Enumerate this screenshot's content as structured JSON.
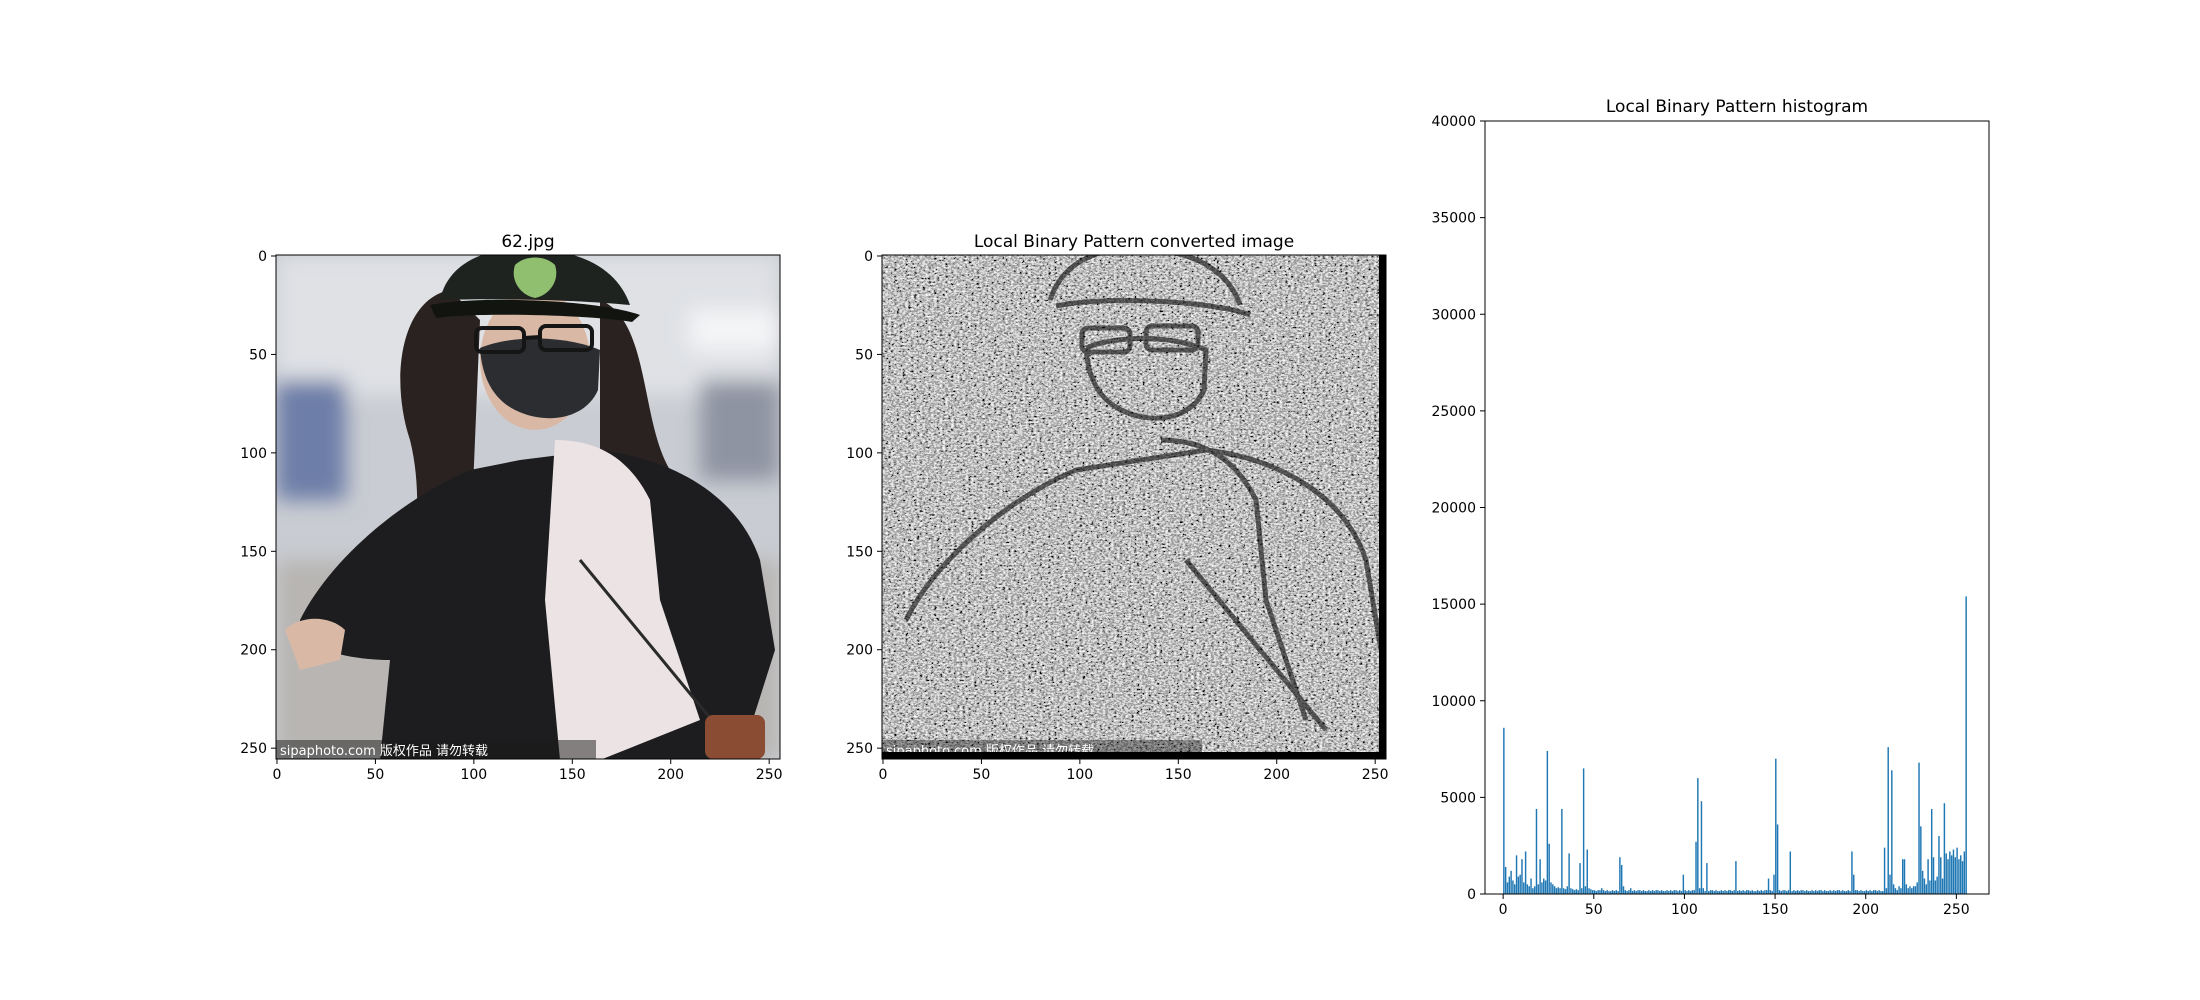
{
  "panels": [
    {
      "title": "62.jpg",
      "xticks": [
        "0",
        "50",
        "100",
        "150",
        "200",
        "250"
      ],
      "yticks": [
        "0",
        "50",
        "100",
        "150",
        "200",
        "250"
      ],
      "watermark": "sipaphoto.com 版权作品 请勿转载",
      "colors": {
        "skin": "#d9b9a6",
        "hair": "#2a2220",
        "mask": "#2b2d31",
        "jacket": "#1d1d1f",
        "top": "#ece4e4",
        "cap": "#1f2320",
        "cap_logo": "#8fbf6f",
        "background": "#c9ccd2",
        "bag": "#8a4d33"
      }
    },
    {
      "title": "Local Binary Pattern converted image",
      "xticks": [
        "0",
        "50",
        "100",
        "150",
        "200",
        "250"
      ],
      "yticks": [
        "0",
        "50",
        "100",
        "150",
        "200",
        "250"
      ],
      "watermark": "sipaphoto.com 版权作品 请勿转载"
    }
  ],
  "chart_data": {
    "type": "bar",
    "title": "Local Binary Pattern histogram",
    "xlabel": "",
    "ylabel": "",
    "xlim": [
      -10,
      268
    ],
    "ylim": [
      0,
      40000
    ],
    "xticks": [
      0,
      50,
      100,
      150,
      200,
      250
    ],
    "yticks": [
      0,
      5000,
      10000,
      15000,
      20000,
      25000,
      30000,
      35000,
      40000
    ],
    "grid": false,
    "bar_color": "#1f77b4",
    "values": [
      8600,
      1400,
      600,
      900,
      1200,
      700,
      500,
      2000,
      900,
      1000,
      1800,
      600,
      2200,
      500,
      400,
      800,
      300,
      400,
      4400,
      500,
      1800,
      600,
      800,
      700,
      7400,
      2600,
      600,
      500,
      400,
      300,
      350,
      300,
      4400,
      300,
      250,
      400,
      2100,
      300,
      250,
      200,
      250,
      200,
      1600,
      300,
      6500,
      400,
      2300,
      300,
      250,
      200,
      200,
      150,
      200,
      200,
      300,
      200,
      150,
      200,
      150,
      150,
      200,
      150,
      200,
      150,
      1900,
      1500,
      400,
      200,
      150,
      200,
      300,
      150,
      200,
      150,
      200,
      200,
      150,
      200,
      150,
      150,
      200,
      150,
      200,
      150,
      200,
      200,
      150,
      200,
      150,
      150,
      200,
      150,
      200,
      150,
      200,
      200,
      150,
      200,
      150,
      1000,
      200,
      150,
      200,
      150,
      200,
      200,
      2700,
      6000,
      300,
      4800,
      300,
      150,
      1600,
      150,
      200,
      200,
      150,
      200,
      150,
      150,
      200,
      150,
      200,
      150,
      200,
      200,
      150,
      200,
      1700,
      150,
      200,
      150,
      200,
      150,
      200,
      200,
      150,
      200,
      150,
      150,
      200,
      150,
      200,
      150,
      200,
      200,
      800,
      200,
      150,
      1000,
      7000,
      3600,
      200,
      150,
      200,
      200,
      150,
      200,
      2200,
      150,
      200,
      150,
      200,
      150,
      200,
      200,
      150,
      200,
      150,
      150,
      200,
      150,
      200,
      150,
      200,
      200,
      150,
      200,
      150,
      150,
      200,
      150,
      200,
      150,
      200,
      200,
      150,
      200,
      150,
      150,
      200,
      150,
      2200,
      1000,
      200,
      200,
      150,
      200,
      150,
      150,
      200,
      150,
      200,
      150,
      200,
      200,
      150,
      200,
      150,
      150,
      2400,
      300,
      7600,
      1000,
      6400,
      500,
      300,
      200,
      400,
      300,
      1800,
      1800,
      500,
      300,
      400,
      300,
      400,
      400,
      600,
      6800,
      3500,
      1200,
      800,
      500,
      1800,
      700,
      4400,
      1900,
      700,
      900,
      3000,
      1900,
      800,
      4700,
      2100,
      1800,
      2200,
      2000,
      2300,
      1900,
      2400,
      1800,
      2000,
      1700,
      2200,
      15400
    ]
  }
}
